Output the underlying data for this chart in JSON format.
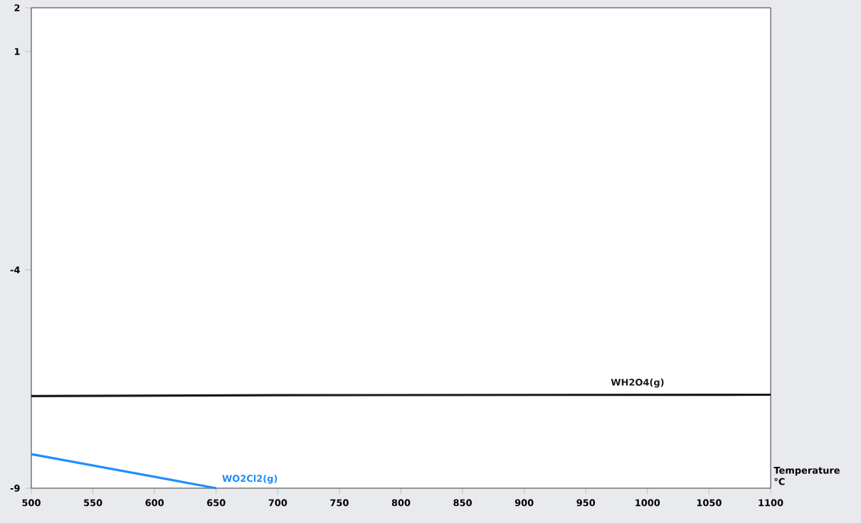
{
  "chart_data": {
    "type": "line",
    "xlabel": "Temperature °C",
    "series": [
      {
        "name": "WH2O4(g)",
        "color": "#1a1a1a",
        "x": [
          500,
          700,
          1100
        ],
        "values": [
          -6.89,
          -6.87,
          -6.86
        ]
      },
      {
        "name": "WO2Cl2(g)",
        "color": "#1e8fff",
        "x": [
          500,
          650
        ],
        "values": [
          -8.22,
          -9
        ]
      }
    ],
    "xlim": [
      500,
      1100
    ],
    "ylim": [
      -9,
      2
    ],
    "xticks": [
      500,
      550,
      600,
      650,
      700,
      750,
      800,
      850,
      900,
      950,
      1000,
      1050,
      1100
    ],
    "yticks": [
      -9,
      -4,
      1,
      2
    ],
    "grid": false,
    "marker": "none",
    "line_style": "solid"
  }
}
